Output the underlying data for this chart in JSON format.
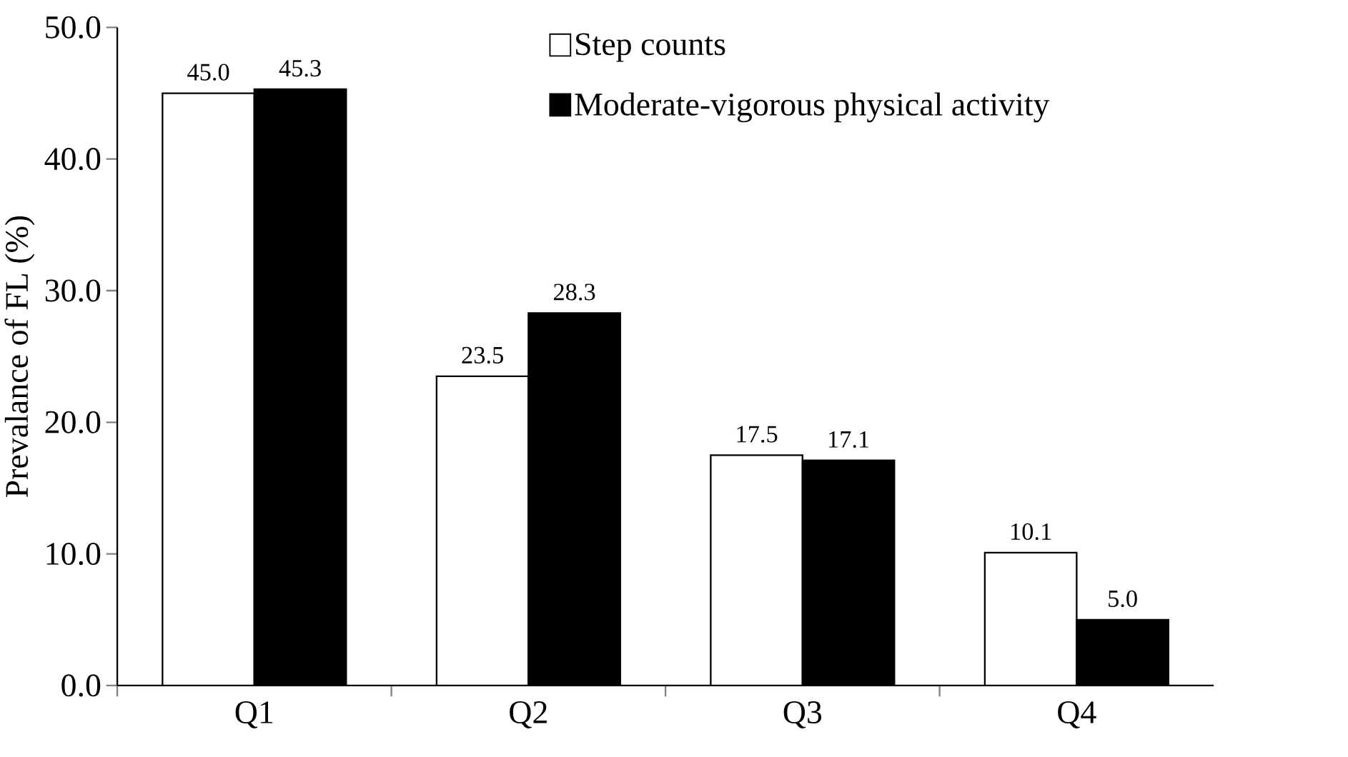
{
  "chart_data": {
    "type": "bar",
    "ylabel": "Prevalance of FL (%)",
    "categories": [
      "Q1",
      "Q2",
      "Q3",
      "Q4"
    ],
    "series": [
      {
        "name": "Step counts",
        "color": "#ffffff",
        "values": [
          45.0,
          23.5,
          17.5,
          10.1
        ],
        "value_labels": [
          "45.0",
          "23.5",
          "17.5",
          "10.1"
        ]
      },
      {
        "name": "Moderate-vigorous physical activity",
        "color": "#000000",
        "values": [
          45.3,
          28.3,
          17.1,
          5.0
        ],
        "value_labels": [
          "45.3",
          "28.3",
          "17.1",
          "5.0"
        ]
      }
    ],
    "ylim": [
      0,
      50
    ],
    "yticks": [
      {
        "value": 0,
        "label": "0.0"
      },
      {
        "value": 10,
        "label": "10.0"
      },
      {
        "value": 20,
        "label": "20.0"
      },
      {
        "value": 30,
        "label": "30.0"
      },
      {
        "value": 40,
        "label": "40.0"
      },
      {
        "value": 50,
        "label": "50.0"
      }
    ],
    "grid": false,
    "legend": "top right"
  }
}
